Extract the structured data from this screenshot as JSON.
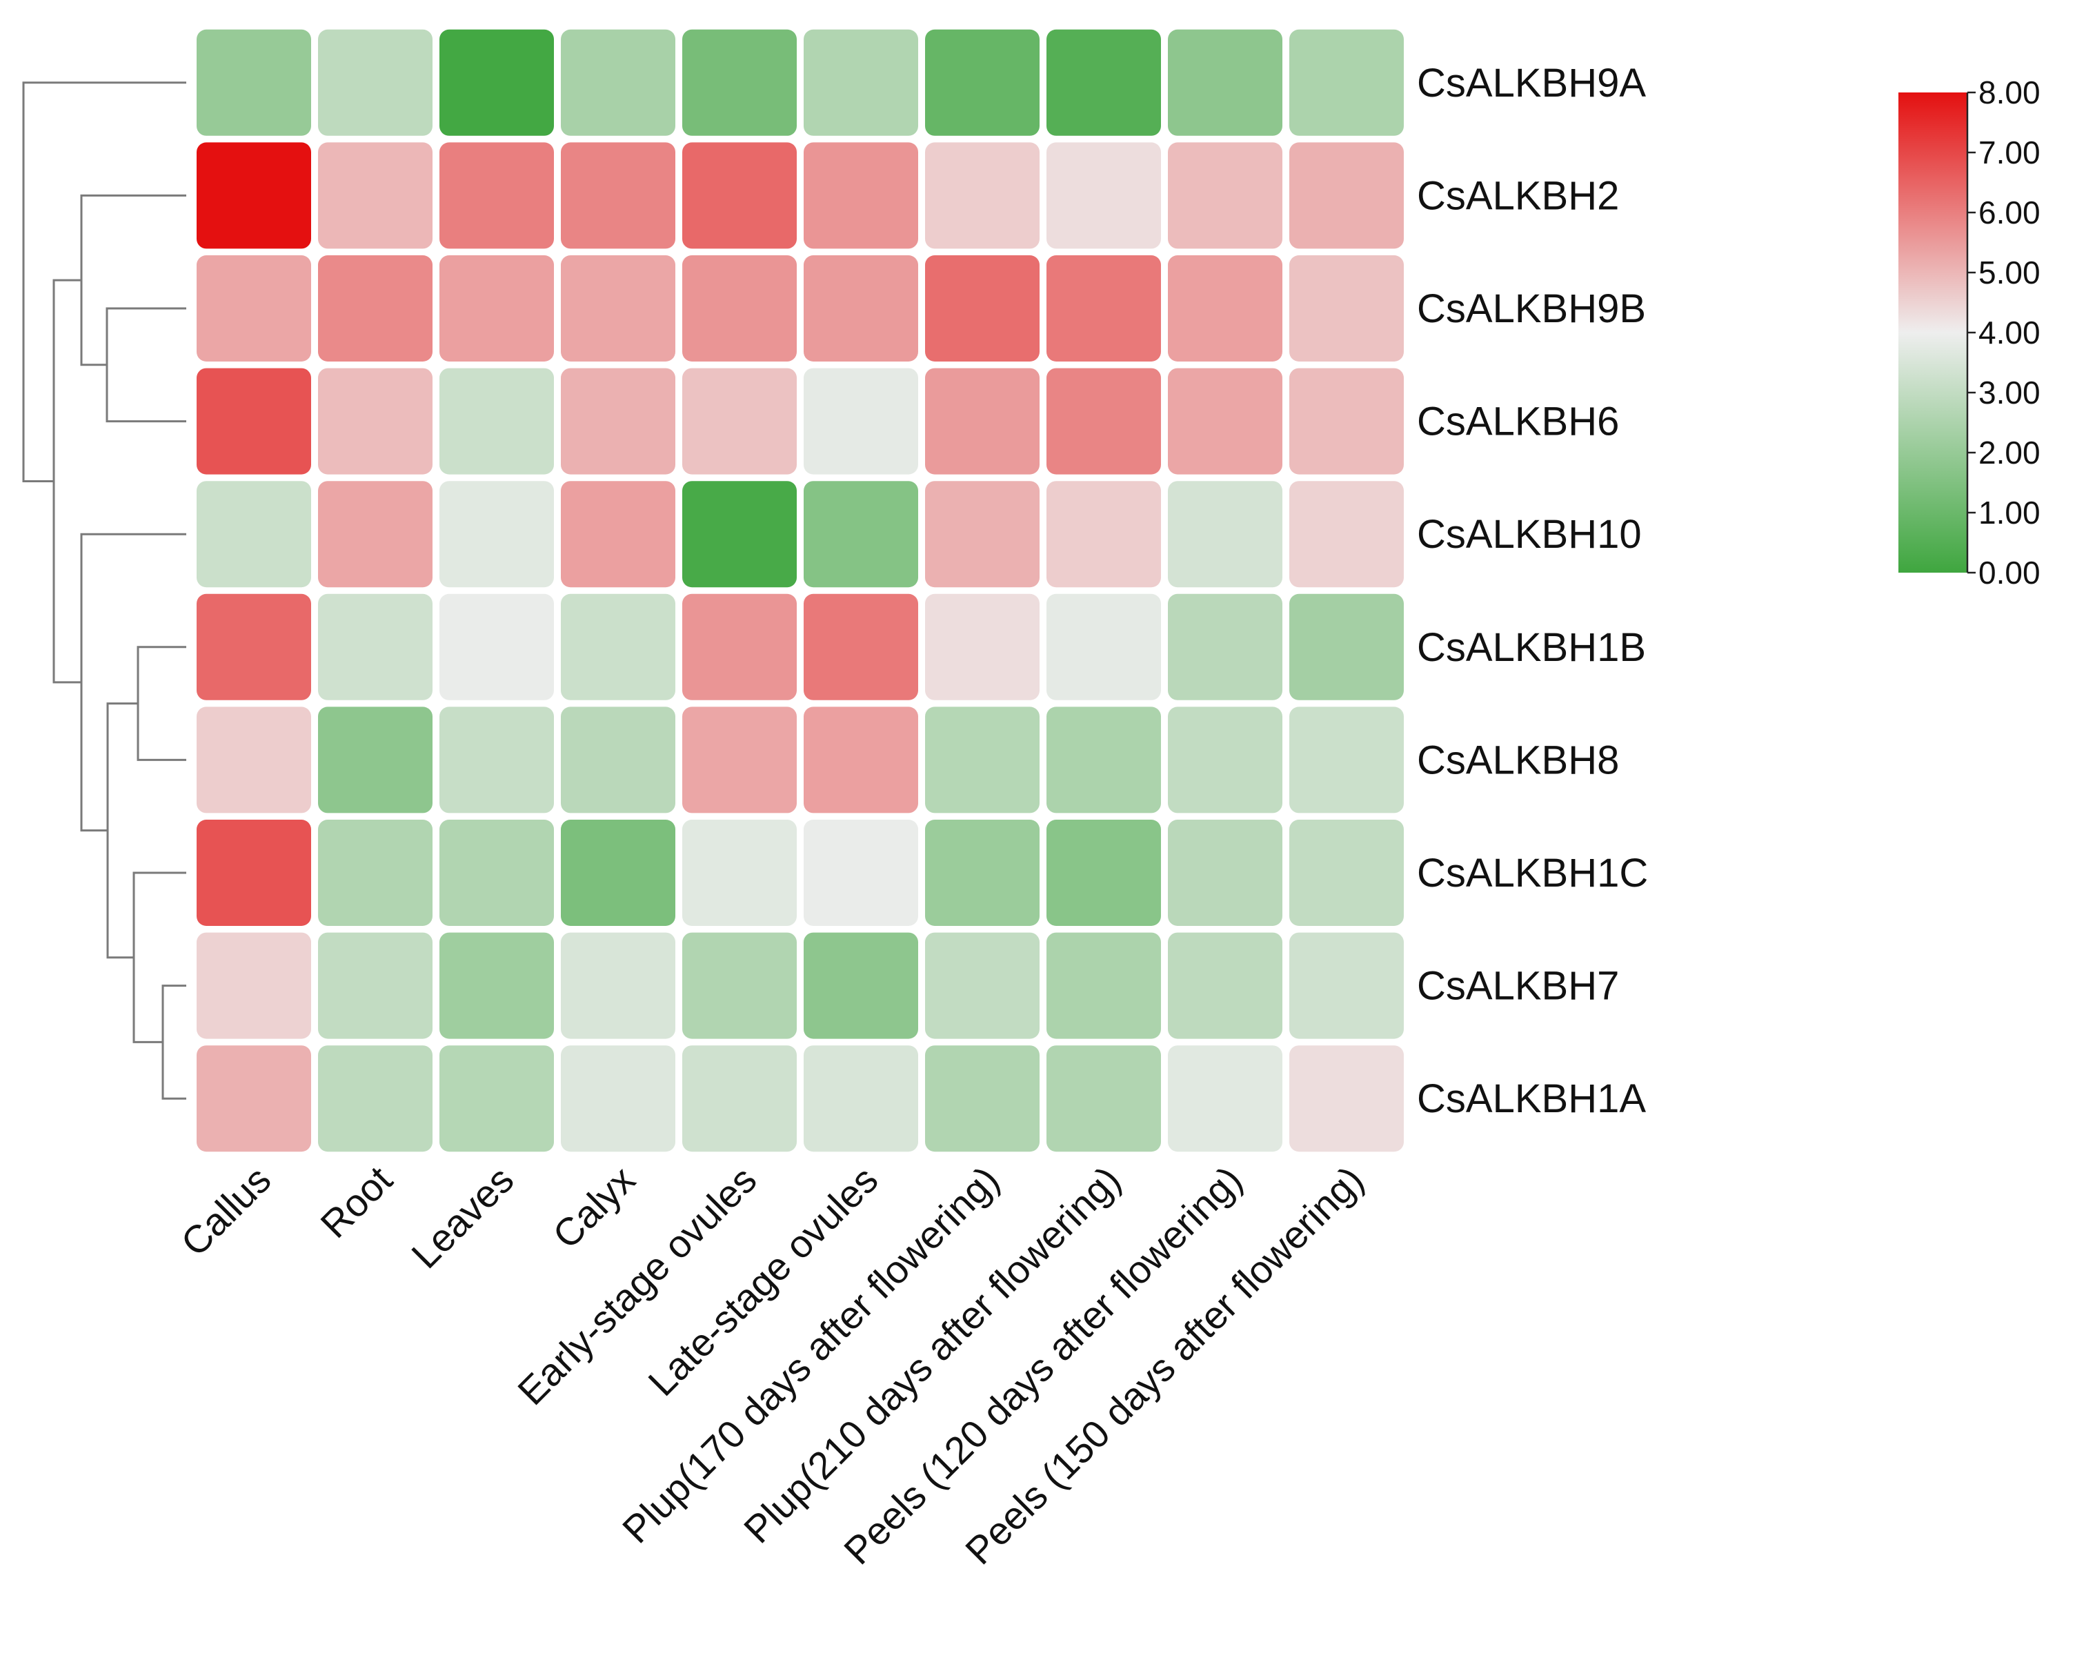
{
  "chart_data": {
    "type": "heatmap",
    "title": "",
    "xlabel": "",
    "ylabel": "",
    "rows": [
      "CsALKBH9A",
      "CsALKBH2",
      "CsALKBH9B",
      "CsALKBH6",
      "CsALKBH10",
      "CsALKBH1B",
      "CsALKBH8",
      "CsALKBH1C",
      "CsALKBH7",
      "CsALKBH1A"
    ],
    "columns": [
      "Callus",
      "Root",
      "Leaves",
      "Calyx",
      "Early-stage ovules",
      "Late-stage ovules",
      "Plup(170 days after flowering)",
      "Plup(210 days after flowering)",
      "Peels (120 days after flowering)",
      "Peels (150 days after flowering)"
    ],
    "values": [
      [
        2.0,
        2.9,
        0.1,
        2.4,
        1.3,
        2.6,
        0.9,
        0.5,
        1.8,
        2.5
      ],
      [
        8.0,
        5.0,
        6.0,
        5.9,
        6.4,
        5.6,
        4.6,
        4.3,
        4.9,
        5.1
      ],
      [
        5.3,
        5.8,
        5.4,
        5.3,
        5.6,
        5.5,
        6.3,
        6.1,
        5.4,
        4.8
      ],
      [
        6.8,
        4.9,
        3.2,
        5.1,
        4.8,
        3.8,
        5.5,
        5.9,
        5.3,
        4.9
      ],
      [
        3.2,
        5.3,
        3.7,
        5.4,
        0.2,
        1.6,
        5.1,
        4.6,
        3.4,
        4.5
      ],
      [
        6.4,
        3.3,
        3.9,
        3.2,
        5.6,
        6.1,
        4.3,
        3.8,
        2.8,
        2.3
      ],
      [
        4.6,
        1.8,
        3.1,
        2.8,
        5.3,
        5.4,
        2.7,
        2.5,
        3.0,
        3.2
      ],
      [
        6.8,
        2.6,
        2.6,
        1.4,
        3.7,
        3.9,
        2.1,
        1.7,
        2.8,
        3.0
      ],
      [
        4.5,
        3.0,
        2.2,
        3.5,
        2.6,
        1.8,
        3.0,
        2.5,
        2.9,
        3.3
      ],
      [
        5.1,
        2.9,
        2.7,
        3.6,
        3.3,
        3.5,
        2.6,
        2.6,
        3.7,
        4.3
      ]
    ],
    "colorbar": {
      "min": 0.0,
      "max": 8.0,
      "ticks": [
        "0.00",
        "1.00",
        "2.00",
        "3.00",
        "4.00",
        "5.00",
        "6.00",
        "7.00",
        "8.00"
      ],
      "low_color": "#3fa63f",
      "mid_color": "#eeeeee",
      "high_color": "#e41010",
      "mid_value": 4.0
    },
    "row_dendrogram": true,
    "legend_position": "top-right"
  }
}
